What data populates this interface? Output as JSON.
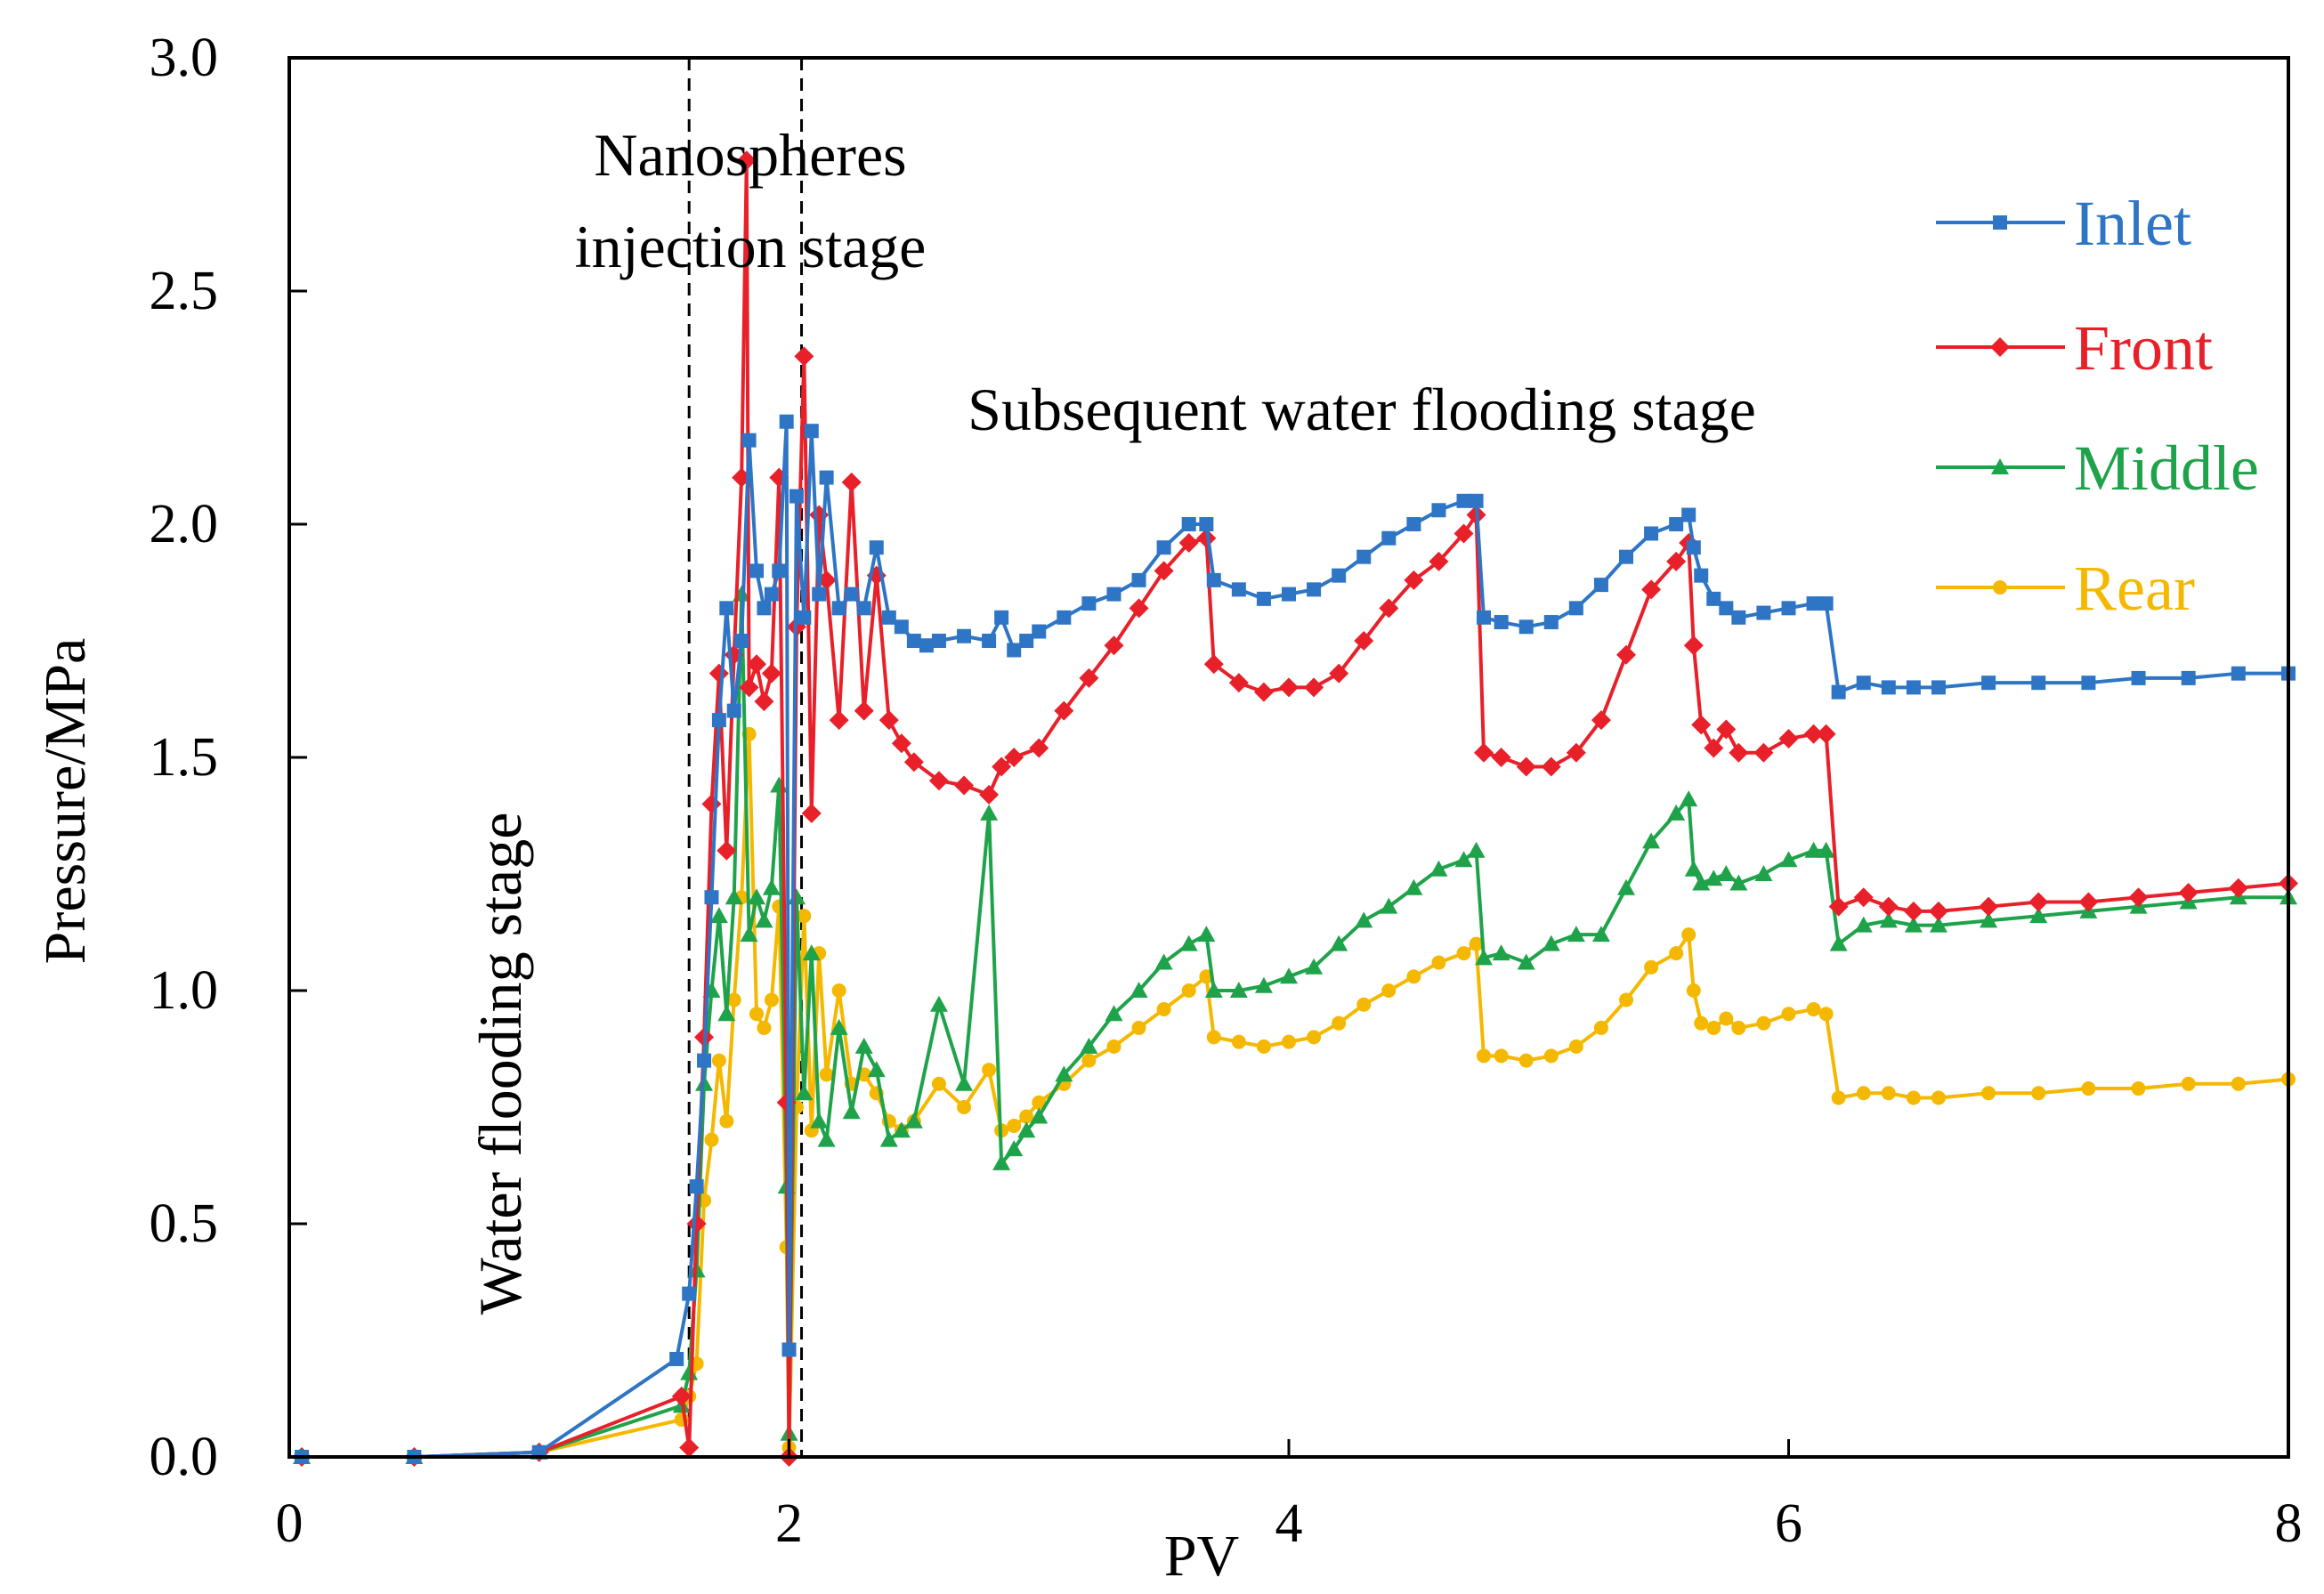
{
  "chart_data": {
    "type": "line",
    "xlabel": "PV",
    "ylabel": "Pressure/MPa",
    "xlim": [
      0,
      8
    ],
    "ylim": [
      0,
      3.0
    ],
    "xticks": [
      "0",
      "2",
      "4",
      "6",
      "8"
    ],
    "yticks": [
      "0.0",
      "0.5",
      "1.0",
      "1.5",
      "2.0",
      "2.5",
      "3.0"
    ],
    "grid": false,
    "legend_position": "right",
    "stage_lines": [
      1.6,
      2.05
    ],
    "annotations": {
      "water_flooding": "Water flooding stage",
      "nano_line1": "Nanospheres",
      "nano_line2": "injection stage",
      "subsequent": "Subsequent water flooding stage"
    },
    "series": [
      {
        "name": "Inlet",
        "color": "#2E75C6",
        "marker": "square",
        "x": [
          0.05,
          0.5,
          1.0,
          1.55,
          1.6,
          1.63,
          1.66,
          1.69,
          1.72,
          1.75,
          1.78,
          1.81,
          1.84,
          1.87,
          1.9,
          1.93,
          1.96,
          1.99,
          2.0,
          2.03,
          2.06,
          2.09,
          2.12,
          2.15,
          2.2,
          2.25,
          2.3,
          2.35,
          2.4,
          2.45,
          2.5,
          2.55,
          2.6,
          2.7,
          2.8,
          2.85,
          2.9,
          2.95,
          3.0,
          3.1,
          3.2,
          3.3,
          3.4,
          3.5,
          3.6,
          3.67,
          3.7,
          3.8,
          3.9,
          4.0,
          4.1,
          4.2,
          4.3,
          4.4,
          4.5,
          4.6,
          4.7,
          4.75,
          4.78,
          4.85,
          4.95,
          5.05,
          5.15,
          5.25,
          5.35,
          5.45,
          5.55,
          5.6,
          5.62,
          5.65,
          5.7,
          5.75,
          5.8,
          5.9,
          6.0,
          6.1,
          6.15,
          6.2,
          6.3,
          6.4,
          6.5,
          6.6,
          6.8,
          7.0,
          7.2,
          7.4,
          7.6,
          7.8,
          8.0
        ],
        "y": [
          0.0,
          0.0,
          0.01,
          0.21,
          0.35,
          0.58,
          0.85,
          1.2,
          1.58,
          1.82,
          1.6,
          1.75,
          2.18,
          1.9,
          1.82,
          1.85,
          1.9,
          2.22,
          0.23,
          2.06,
          1.8,
          2.2,
          1.85,
          2.1,
          1.82,
          1.85,
          1.82,
          1.95,
          1.8,
          1.78,
          1.75,
          1.74,
          1.75,
          1.76,
          1.75,
          1.8,
          1.73,
          1.75,
          1.77,
          1.8,
          1.83,
          1.85,
          1.88,
          1.95,
          2.0,
          2.0,
          1.88,
          1.86,
          1.84,
          1.85,
          1.86,
          1.89,
          1.93,
          1.97,
          2.0,
          2.03,
          2.05,
          2.05,
          1.8,
          1.79,
          1.78,
          1.79,
          1.82,
          1.87,
          1.93,
          1.98,
          2.0,
          2.02,
          1.95,
          1.89,
          1.84,
          1.82,
          1.8,
          1.81,
          1.82,
          1.83,
          1.83,
          1.64,
          1.66,
          1.65,
          1.65,
          1.65,
          1.66,
          1.66,
          1.66,
          1.67,
          1.67,
          1.68,
          1.68
        ]
      },
      {
        "name": "Front",
        "color": "#E8202A",
        "marker": "diamond",
        "x": [
          0.05,
          0.5,
          1.0,
          1.57,
          1.6,
          1.63,
          1.66,
          1.69,
          1.72,
          1.75,
          1.78,
          1.81,
          1.83,
          1.84,
          1.87,
          1.9,
          1.93,
          1.96,
          1.99,
          2.0,
          2.03,
          2.06,
          2.09,
          2.12,
          2.15,
          2.2,
          2.25,
          2.3,
          2.35,
          2.4,
          2.45,
          2.5,
          2.6,
          2.7,
          2.8,
          2.85,
          2.9,
          3.0,
          3.1,
          3.2,
          3.3,
          3.4,
          3.5,
          3.6,
          3.67,
          3.7,
          3.8,
          3.9,
          4.0,
          4.1,
          4.2,
          4.3,
          4.4,
          4.5,
          4.6,
          4.7,
          4.75,
          4.78,
          4.85,
          4.95,
          5.05,
          5.15,
          5.25,
          5.35,
          5.45,
          5.55,
          5.6,
          5.62,
          5.65,
          5.7,
          5.75,
          5.8,
          5.9,
          6.0,
          6.1,
          6.15,
          6.2,
          6.3,
          6.4,
          6.5,
          6.6,
          6.8,
          7.0,
          7.2,
          7.4,
          7.6,
          7.8,
          8.0
        ],
        "y": [
          0.0,
          0.0,
          0.01,
          0.13,
          0.02,
          0.5,
          0.9,
          1.4,
          1.68,
          1.3,
          1.72,
          2.1,
          2.78,
          1.65,
          1.7,
          1.62,
          1.68,
          2.1,
          0.76,
          0.0,
          1.78,
          2.36,
          1.38,
          2.02,
          1.88,
          1.58,
          2.09,
          1.6,
          1.89,
          1.58,
          1.53,
          1.49,
          1.45,
          1.44,
          1.42,
          1.48,
          1.5,
          1.52,
          1.6,
          1.67,
          1.74,
          1.82,
          1.9,
          1.96,
          1.97,
          1.7,
          1.66,
          1.64,
          1.65,
          1.65,
          1.68,
          1.75,
          1.82,
          1.88,
          1.92,
          1.98,
          2.02,
          1.51,
          1.5,
          1.48,
          1.48,
          1.51,
          1.58,
          1.72,
          1.86,
          1.92,
          1.96,
          1.74,
          1.57,
          1.52,
          1.56,
          1.51,
          1.51,
          1.54,
          1.55,
          1.55,
          1.18,
          1.2,
          1.18,
          1.17,
          1.17,
          1.18,
          1.19,
          1.19,
          1.2,
          1.21,
          1.22,
          1.23
        ]
      },
      {
        "name": "Middle",
        "color": "#1FA34A",
        "marker": "triangle",
        "x": [
          0.05,
          0.5,
          1.0,
          1.57,
          1.6,
          1.63,
          1.66,
          1.69,
          1.72,
          1.75,
          1.78,
          1.81,
          1.84,
          1.87,
          1.9,
          1.93,
          1.96,
          1.99,
          2.0,
          2.03,
          2.06,
          2.09,
          2.12,
          2.15,
          2.2,
          2.25,
          2.3,
          2.35,
          2.4,
          2.45,
          2.5,
          2.6,
          2.7,
          2.8,
          2.85,
          2.9,
          2.95,
          3.0,
          3.1,
          3.2,
          3.3,
          3.4,
          3.5,
          3.6,
          3.67,
          3.7,
          3.8,
          3.9,
          4.0,
          4.1,
          4.2,
          4.3,
          4.4,
          4.5,
          4.6,
          4.7,
          4.75,
          4.78,
          4.85,
          4.95,
          5.05,
          5.15,
          5.25,
          5.35,
          5.45,
          5.55,
          5.6,
          5.62,
          5.65,
          5.7,
          5.75,
          5.8,
          5.9,
          6.0,
          6.1,
          6.15,
          6.2,
          6.3,
          6.4,
          6.5,
          6.6,
          6.8,
          7.0,
          7.2,
          7.4,
          7.6,
          7.8,
          8.0
        ],
        "y": [
          0.0,
          0.0,
          0.01,
          0.11,
          0.18,
          0.4,
          0.8,
          1.0,
          1.16,
          0.95,
          1.2,
          1.85,
          1.12,
          1.2,
          1.15,
          1.22,
          1.44,
          0.58,
          0.05,
          1.2,
          0.78,
          1.08,
          0.72,
          0.68,
          0.92,
          0.74,
          0.88,
          0.83,
          0.68,
          0.7,
          0.72,
          0.97,
          0.8,
          1.38,
          0.63,
          0.66,
          0.7,
          0.73,
          0.82,
          0.88,
          0.95,
          1.0,
          1.06,
          1.1,
          1.12,
          1.0,
          1.0,
          1.01,
          1.03,
          1.05,
          1.1,
          1.15,
          1.18,
          1.22,
          1.26,
          1.28,
          1.3,
          1.07,
          1.08,
          1.06,
          1.1,
          1.12,
          1.12,
          1.22,
          1.32,
          1.38,
          1.41,
          1.26,
          1.23,
          1.24,
          1.25,
          1.23,
          1.25,
          1.28,
          1.3,
          1.3,
          1.1,
          1.14,
          1.15,
          1.14,
          1.14,
          1.15,
          1.16,
          1.17,
          1.18,
          1.19,
          1.2,
          1.2
        ]
      },
      {
        "name": "Rear",
        "color": "#F5B800",
        "marker": "circle",
        "x": [
          0.05,
          0.5,
          1.0,
          1.57,
          1.6,
          1.63,
          1.66,
          1.69,
          1.72,
          1.75,
          1.78,
          1.81,
          1.84,
          1.87,
          1.9,
          1.93,
          1.96,
          1.99,
          2.0,
          2.03,
          2.06,
          2.09,
          2.12,
          2.15,
          2.2,
          2.25,
          2.3,
          2.35,
          2.4,
          2.45,
          2.5,
          2.6,
          2.7,
          2.8,
          2.85,
          2.9,
          2.95,
          3.0,
          3.1,
          3.2,
          3.3,
          3.4,
          3.5,
          3.6,
          3.67,
          3.7,
          3.8,
          3.9,
          4.0,
          4.1,
          4.2,
          4.3,
          4.4,
          4.5,
          4.6,
          4.7,
          4.75,
          4.78,
          4.85,
          4.95,
          5.05,
          5.15,
          5.25,
          5.35,
          5.45,
          5.55,
          5.6,
          5.62,
          5.65,
          5.7,
          5.75,
          5.8,
          5.9,
          6.0,
          6.1,
          6.15,
          6.2,
          6.3,
          6.4,
          6.5,
          6.6,
          6.8,
          7.0,
          7.2,
          7.4,
          7.6,
          7.8,
          8.0
        ],
        "y": [
          0.0,
          0.0,
          0.01,
          0.08,
          0.13,
          0.2,
          0.55,
          0.68,
          0.85,
          0.72,
          0.98,
          1.2,
          1.55,
          0.95,
          0.92,
          0.98,
          1.18,
          0.45,
          0.02,
          0.75,
          1.16,
          0.7,
          1.08,
          0.82,
          1.0,
          0.8,
          0.82,
          0.78,
          0.72,
          0.7,
          0.72,
          0.8,
          0.75,
          0.83,
          0.7,
          0.71,
          0.73,
          0.76,
          0.8,
          0.85,
          0.88,
          0.92,
          0.96,
          1.0,
          1.03,
          0.9,
          0.89,
          0.88,
          0.89,
          0.9,
          0.93,
          0.97,
          1.0,
          1.03,
          1.06,
          1.08,
          1.1,
          0.86,
          0.86,
          0.85,
          0.86,
          0.88,
          0.92,
          0.98,
          1.05,
          1.08,
          1.12,
          1.0,
          0.93,
          0.92,
          0.94,
          0.92,
          0.93,
          0.95,
          0.96,
          0.95,
          0.77,
          0.78,
          0.78,
          0.77,
          0.77,
          0.78,
          0.78,
          0.79,
          0.79,
          0.8,
          0.8,
          0.81
        ]
      }
    ]
  }
}
